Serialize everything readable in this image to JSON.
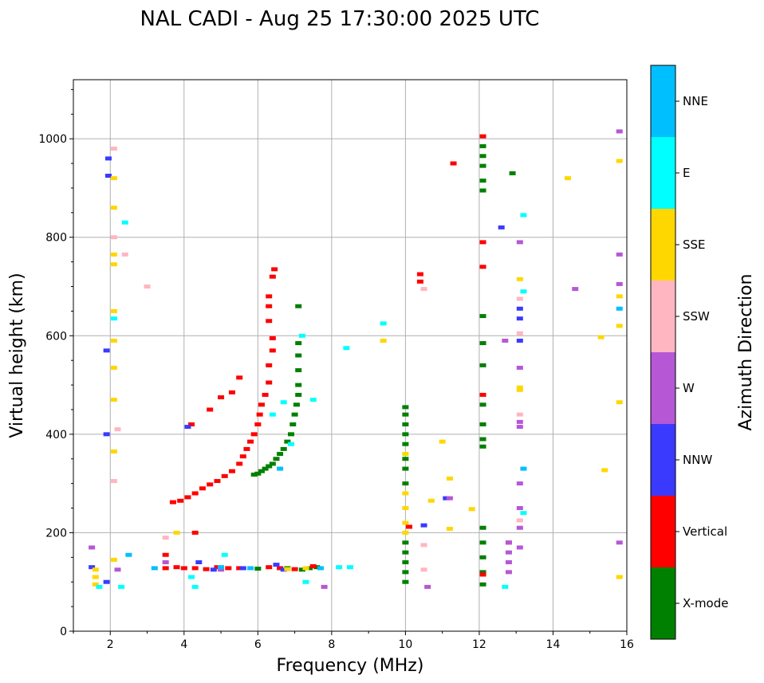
{
  "chart_data": {
    "type": "scatter",
    "title": "NAL CADI - Aug 25 17:30:00 2025 UTC",
    "xlabel": "Frequency (MHz)",
    "ylabel": "Virtual height (km)",
    "xlim": [
      1,
      16
    ],
    "ylim": [
      0,
      1120
    ],
    "xticks": [
      2,
      4,
      6,
      8,
      10,
      12,
      14,
      16
    ],
    "yticks": [
      0,
      200,
      400,
      600,
      800,
      1000
    ],
    "grid": true,
    "colorbar": {
      "title": "Azimuth Direction",
      "categories": [
        {
          "name": "X-mode",
          "color": "#008000"
        },
        {
          "name": "Vertical",
          "color": "#ff0000"
        },
        {
          "name": "NNW",
          "color": "#3a3aff"
        },
        {
          "name": "W",
          "color": "#b657d6"
        },
        {
          "name": "SSW",
          "color": "#ffb6c1"
        },
        {
          "name": "SSE",
          "color": "#ffd700"
        },
        {
          "name": "E",
          "color": "#00ffff"
        },
        {
          "name": "NNE",
          "color": "#00bfff"
        }
      ]
    },
    "series": [
      {
        "name": "X-mode",
        "points": [
          [
            6.1,
            325
          ],
          [
            6.2,
            330
          ],
          [
            6.3,
            335
          ],
          [
            6.4,
            340
          ],
          [
            6.5,
            350
          ],
          [
            6.6,
            360
          ],
          [
            6.7,
            370
          ],
          [
            6.8,
            385
          ],
          [
            6.9,
            400
          ],
          [
            6.95,
            420
          ],
          [
            7.0,
            440
          ],
          [
            7.05,
            460
          ],
          [
            7.1,
            480
          ],
          [
            7.1,
            500
          ],
          [
            7.1,
            530
          ],
          [
            7.1,
            560
          ],
          [
            7.1,
            585
          ],
          [
            7.1,
            660
          ],
          [
            6.0,
            320
          ],
          [
            5.9,
            318
          ],
          [
            7.2,
            125
          ],
          [
            7.4,
            128
          ],
          [
            7.6,
            130
          ],
          [
            6.8,
            128
          ],
          [
            6.0,
            127
          ],
          [
            10.0,
            100
          ],
          [
            10.0,
            120
          ],
          [
            10.0,
            140
          ],
          [
            10.0,
            160
          ],
          [
            10.0,
            180
          ],
          [
            10.0,
            300
          ],
          [
            10.0,
            330
          ],
          [
            10.0,
            350
          ],
          [
            10.0,
            380
          ],
          [
            10.0,
            400
          ],
          [
            10.0,
            420
          ],
          [
            10.0,
            440
          ],
          [
            10.0,
            455
          ],
          [
            12.1,
            95
          ],
          [
            12.1,
            120
          ],
          [
            12.1,
            150
          ],
          [
            12.1,
            180
          ],
          [
            12.1,
            210
          ],
          [
            12.1,
            375
          ],
          [
            12.1,
            390
          ],
          [
            12.1,
            420
          ],
          [
            12.1,
            460
          ],
          [
            12.1,
            540
          ],
          [
            12.1,
            585
          ],
          [
            12.1,
            640
          ],
          [
            12.1,
            895
          ],
          [
            12.1,
            915
          ],
          [
            12.1,
            945
          ],
          [
            12.1,
            965
          ],
          [
            12.1,
            985
          ],
          [
            12.9,
            930
          ]
        ]
      },
      {
        "name": "Vertical",
        "points": [
          [
            3.7,
            262
          ],
          [
            3.9,
            265
          ],
          [
            4.1,
            272
          ],
          [
            4.3,
            280
          ],
          [
            4.5,
            290
          ],
          [
            4.7,
            298
          ],
          [
            4.9,
            305
          ],
          [
            5.1,
            315
          ],
          [
            5.3,
            325
          ],
          [
            5.5,
            340
          ],
          [
            5.6,
            355
          ],
          [
            5.7,
            370
          ],
          [
            5.8,
            385
          ],
          [
            5.9,
            400
          ],
          [
            6.0,
            420
          ],
          [
            6.05,
            440
          ],
          [
            6.1,
            460
          ],
          [
            6.2,
            480
          ],
          [
            6.3,
            505
          ],
          [
            6.3,
            540
          ],
          [
            6.4,
            570
          ],
          [
            6.4,
            595
          ],
          [
            6.3,
            630
          ],
          [
            6.3,
            660
          ],
          [
            6.3,
            680
          ],
          [
            6.4,
            720
          ],
          [
            6.45,
            735
          ],
          [
            5.3,
            485
          ],
          [
            5.5,
            515
          ],
          [
            4.2,
            420
          ],
          [
            4.7,
            450
          ],
          [
            5.0,
            475
          ],
          [
            3.5,
            128
          ],
          [
            3.8,
            130
          ],
          [
            4.0,
            128
          ],
          [
            4.3,
            128
          ],
          [
            4.6,
            126
          ],
          [
            4.9,
            130
          ],
          [
            5.2,
            128
          ],
          [
            5.5,
            128
          ],
          [
            6.3,
            130
          ],
          [
            6.6,
            128
          ],
          [
            7.0,
            126
          ],
          [
            7.5,
            132
          ],
          [
            3.5,
            155
          ],
          [
            4.3,
            200
          ],
          [
            10.1,
            212
          ],
          [
            10.4,
            710
          ],
          [
            10.4,
            725
          ],
          [
            11.3,
            950
          ],
          [
            12.1,
            790
          ],
          [
            12.1,
            740
          ],
          [
            12.1,
            480
          ],
          [
            12.1,
            115
          ],
          [
            12.1,
            1005
          ],
          [
            12.8,
            180
          ]
        ]
      },
      {
        "name": "NNW",
        "points": [
          [
            1.5,
            130
          ],
          [
            1.9,
            100
          ],
          [
            1.9,
            400
          ],
          [
            1.9,
            570
          ],
          [
            1.95,
            960
          ],
          [
            1.95,
            925
          ],
          [
            4.1,
            415
          ],
          [
            4.4,
            140
          ],
          [
            4.8,
            125
          ],
          [
            5.6,
            128
          ],
          [
            6.5,
            135
          ],
          [
            6.7,
            125
          ],
          [
            10.5,
            215
          ],
          [
            11.1,
            270
          ],
          [
            12.6,
            820
          ],
          [
            13.1,
            635
          ],
          [
            13.1,
            655
          ],
          [
            13.1,
            590
          ]
        ]
      },
      {
        "name": "W",
        "points": [
          [
            1.5,
            170
          ],
          [
            2.2,
            125
          ],
          [
            3.5,
            140
          ],
          [
            5.0,
            125
          ],
          [
            7.8,
            90
          ],
          [
            10.6,
            90
          ],
          [
            11.2,
            270
          ],
          [
            12.8,
            120
          ],
          [
            12.8,
            140
          ],
          [
            12.8,
            160
          ],
          [
            12.8,
            180
          ],
          [
            12.7,
            590
          ],
          [
            13.1,
            790
          ],
          [
            13.1,
            535
          ],
          [
            13.1,
            415
          ],
          [
            13.1,
            425
          ],
          [
            13.1,
            300
          ],
          [
            13.1,
            250
          ],
          [
            13.1,
            210
          ],
          [
            13.1,
            170
          ],
          [
            14.6,
            695
          ],
          [
            15.8,
            1015
          ],
          [
            15.8,
            765
          ],
          [
            15.8,
            705
          ],
          [
            15.8,
            180
          ]
        ]
      },
      {
        "name": "SSW",
        "points": [
          [
            2.1,
            980
          ],
          [
            2.1,
            800
          ],
          [
            2.4,
            765
          ],
          [
            3.0,
            700
          ],
          [
            2.2,
            410
          ],
          [
            2.1,
            305
          ],
          [
            3.5,
            190
          ],
          [
            10.5,
            695
          ],
          [
            10.5,
            175
          ],
          [
            10.5,
            125
          ],
          [
            13.1,
            675
          ],
          [
            13.1,
            605
          ],
          [
            13.1,
            440
          ],
          [
            13.1,
            225
          ]
        ]
      },
      {
        "name": "SSE",
        "points": [
          [
            1.6,
            95
          ],
          [
            1.6,
            110
          ],
          [
            1.6,
            125
          ],
          [
            2.1,
            920
          ],
          [
            2.1,
            860
          ],
          [
            2.1,
            765
          ],
          [
            2.1,
            745
          ],
          [
            2.1,
            650
          ],
          [
            2.1,
            590
          ],
          [
            2.1,
            535
          ],
          [
            2.1,
            470
          ],
          [
            2.1,
            365
          ],
          [
            2.1,
            145
          ],
          [
            3.8,
            200
          ],
          [
            6.8,
            126
          ],
          [
            7.3,
            128
          ],
          [
            9.4,
            590
          ],
          [
            10.0,
            200
          ],
          [
            10.0,
            220
          ],
          [
            10.0,
            250
          ],
          [
            10.0,
            280
          ],
          [
            10.0,
            360
          ],
          [
            10.7,
            265
          ],
          [
            11.0,
            385
          ],
          [
            11.2,
            310
          ],
          [
            11.2,
            208
          ],
          [
            11.8,
            248
          ],
          [
            13.1,
            715
          ],
          [
            13.1,
            495
          ],
          [
            13.1,
            490
          ],
          [
            14.4,
            920
          ],
          [
            15.3,
            597
          ],
          [
            15.4,
            327
          ],
          [
            15.8,
            955
          ],
          [
            15.8,
            680
          ],
          [
            15.8,
            620
          ],
          [
            15.8,
            465
          ],
          [
            15.8,
            110
          ]
        ]
      },
      {
        "name": "E",
        "points": [
          [
            1.7,
            90
          ],
          [
            2.3,
            90
          ],
          [
            2.4,
            830
          ],
          [
            2.1,
            635
          ],
          [
            4.2,
            110
          ],
          [
            4.3,
            90
          ],
          [
            5.1,
            155
          ],
          [
            6.4,
            440
          ],
          [
            6.7,
            465
          ],
          [
            6.9,
            380
          ],
          [
            7.2,
            600
          ],
          [
            7.5,
            470
          ],
          [
            7.3,
            100
          ],
          [
            8.2,
            130
          ],
          [
            8.5,
            130
          ],
          [
            8.4,
            575
          ],
          [
            9.4,
            625
          ],
          [
            12.7,
            90
          ],
          [
            13.2,
            845
          ],
          [
            13.2,
            690
          ],
          [
            13.2,
            240
          ]
        ]
      },
      {
        "name": "NNE",
        "points": [
          [
            2.5,
            155
          ],
          [
            3.2,
            128
          ],
          [
            5.0,
            130
          ],
          [
            5.8,
            128
          ],
          [
            6.6,
            330
          ],
          [
            7.7,
            128
          ],
          [
            13.2,
            330
          ],
          [
            15.8,
            655
          ]
        ]
      }
    ]
  }
}
